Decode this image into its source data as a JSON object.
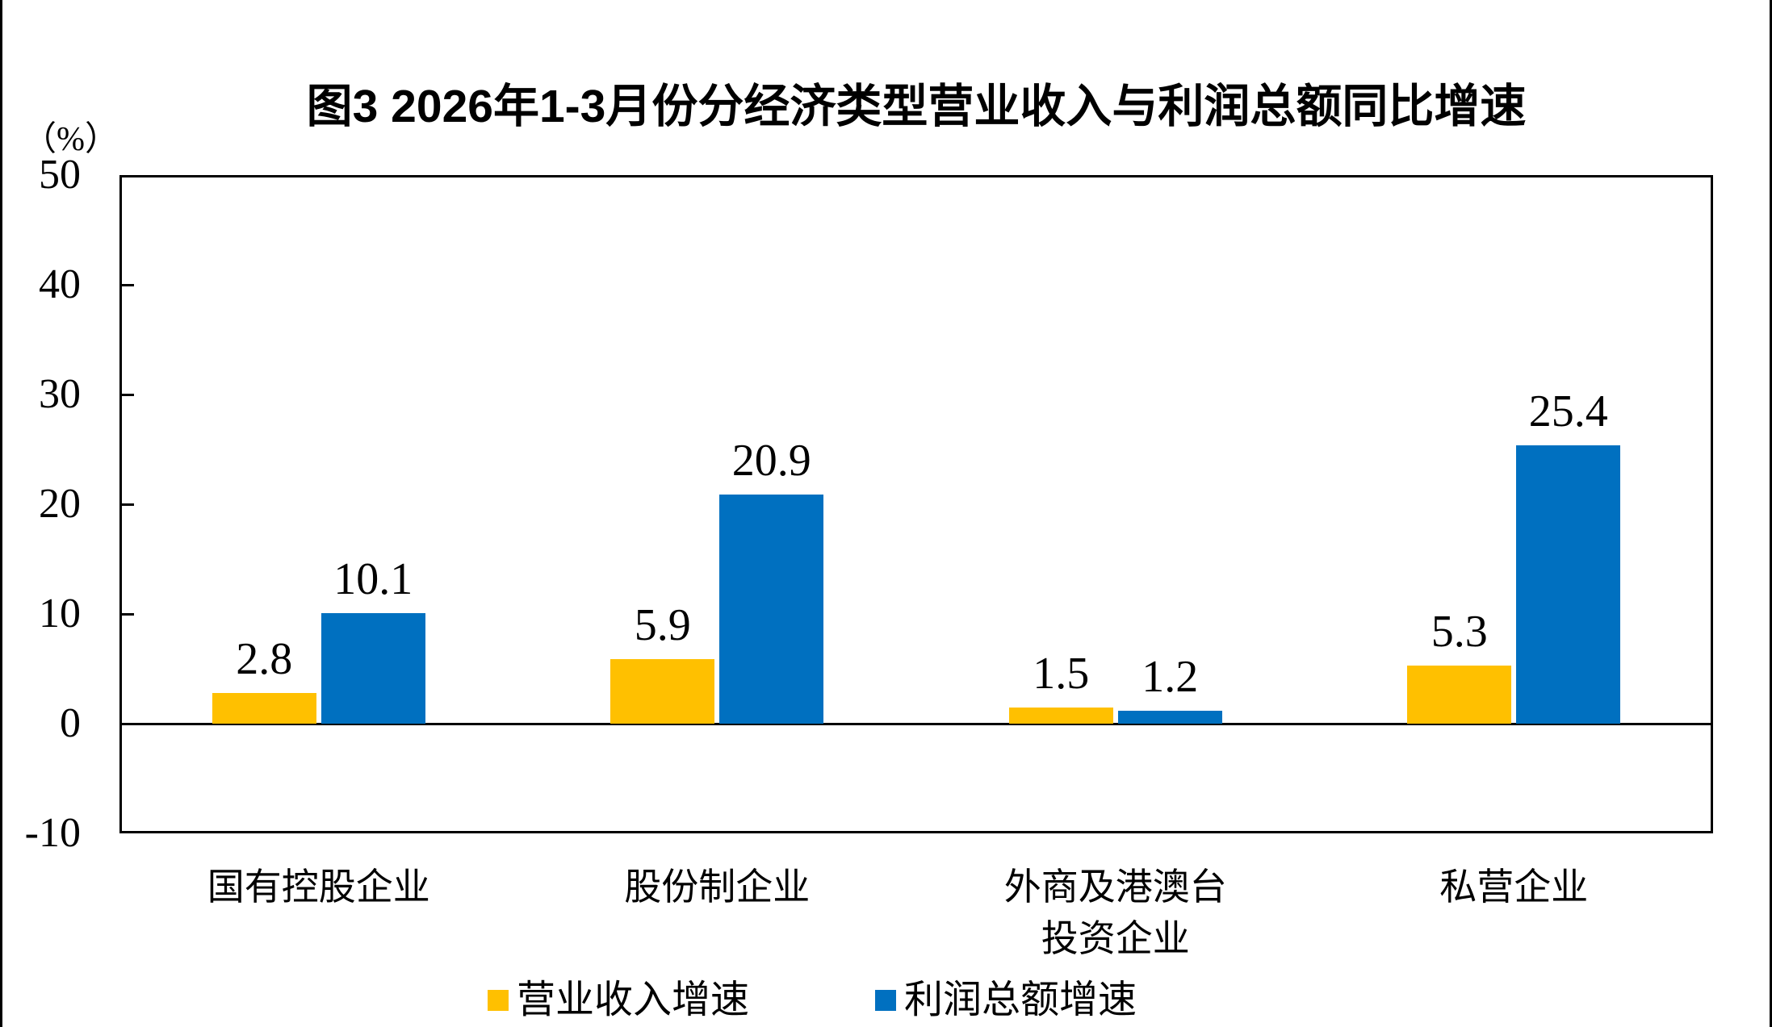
{
  "chart_data": {
    "type": "bar",
    "title": "图3 2026年1-3月份分经济类型营业收入与利润总额同比增速",
    "unit": "（%）",
    "categories": [
      "国有控股企业",
      "股份制企业",
      "外商及港澳台\n投资企业",
      "私营企业"
    ],
    "series": [
      {
        "name": "营业收入增速",
        "color": "#FFC000",
        "values": [
          2.8,
          5.9,
          1.5,
          5.3
        ]
      },
      {
        "name": "利润总额增速",
        "color": "#0070C0",
        "values": [
          10.1,
          20.9,
          1.2,
          25.4
        ]
      }
    ],
    "ylim": [
      -10,
      50
    ],
    "ytick_step": 10,
    "yticks": [
      50,
      40,
      30,
      20,
      10,
      0,
      -10
    ],
    "grid": false,
    "data_labels": true,
    "legend_position": "bottom",
    "axis_color": "#000000",
    "text_color": "#000000",
    "background": "#ffffff"
  }
}
